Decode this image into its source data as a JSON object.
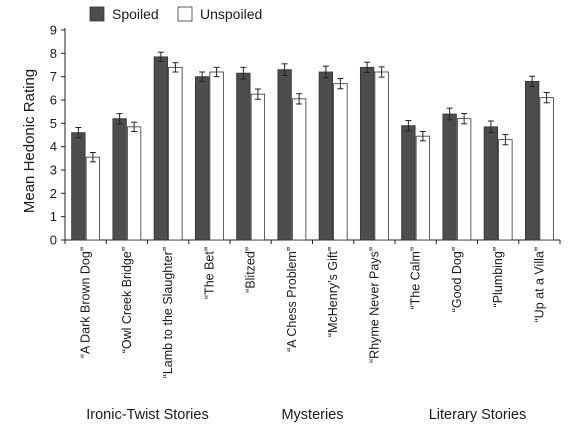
{
  "chart_data": {
    "type": "bar",
    "ylabel": "Mean Hedonic Rating",
    "ylim": [
      0,
      9
    ],
    "yticks": [
      "0",
      "1",
      "2",
      "3",
      "4",
      "5",
      "6",
      "7",
      "8",
      "9"
    ],
    "legend_position": "top-center",
    "categories": [
      "“A Dark Brown Dog”",
      "“Owl Creek Bridge”",
      "“Lamb to the Slaughter”",
      "“The Bet”",
      "“Blitzed”",
      "“A Chess Problem”",
      "“McHenry’s Gift”",
      "“Rhyme Never Pays”",
      "“The Calm”",
      "“Good Dog”",
      "“Plumbing”",
      "“Up at a Villa”"
    ],
    "groups": [
      {
        "label": "Ironic-Twist Stories",
        "start": 0,
        "count": 4
      },
      {
        "label": "Mysteries",
        "start": 4,
        "count": 4
      },
      {
        "label": "Literary Stories",
        "start": 8,
        "count": 4
      }
    ],
    "series": [
      {
        "name": "Spoiled",
        "color": "#4d4d4d",
        "values": [
          4.6,
          5.2,
          7.85,
          7.0,
          7.15,
          7.3,
          7.2,
          7.4,
          4.9,
          5.4,
          4.85,
          6.8
        ],
        "errors": [
          0.22,
          0.22,
          0.2,
          0.2,
          0.25,
          0.25,
          0.25,
          0.22,
          0.22,
          0.25,
          0.25,
          0.22
        ]
      },
      {
        "name": "Unspoiled",
        "color": "#ffffff",
        "values": [
          3.55,
          4.85,
          7.4,
          7.2,
          6.25,
          6.05,
          6.7,
          7.2,
          4.45,
          5.2,
          4.3,
          6.1
        ],
        "errors": [
          0.2,
          0.2,
          0.2,
          0.2,
          0.22,
          0.22,
          0.22,
          0.22,
          0.2,
          0.22,
          0.22,
          0.22
        ]
      }
    ]
  }
}
